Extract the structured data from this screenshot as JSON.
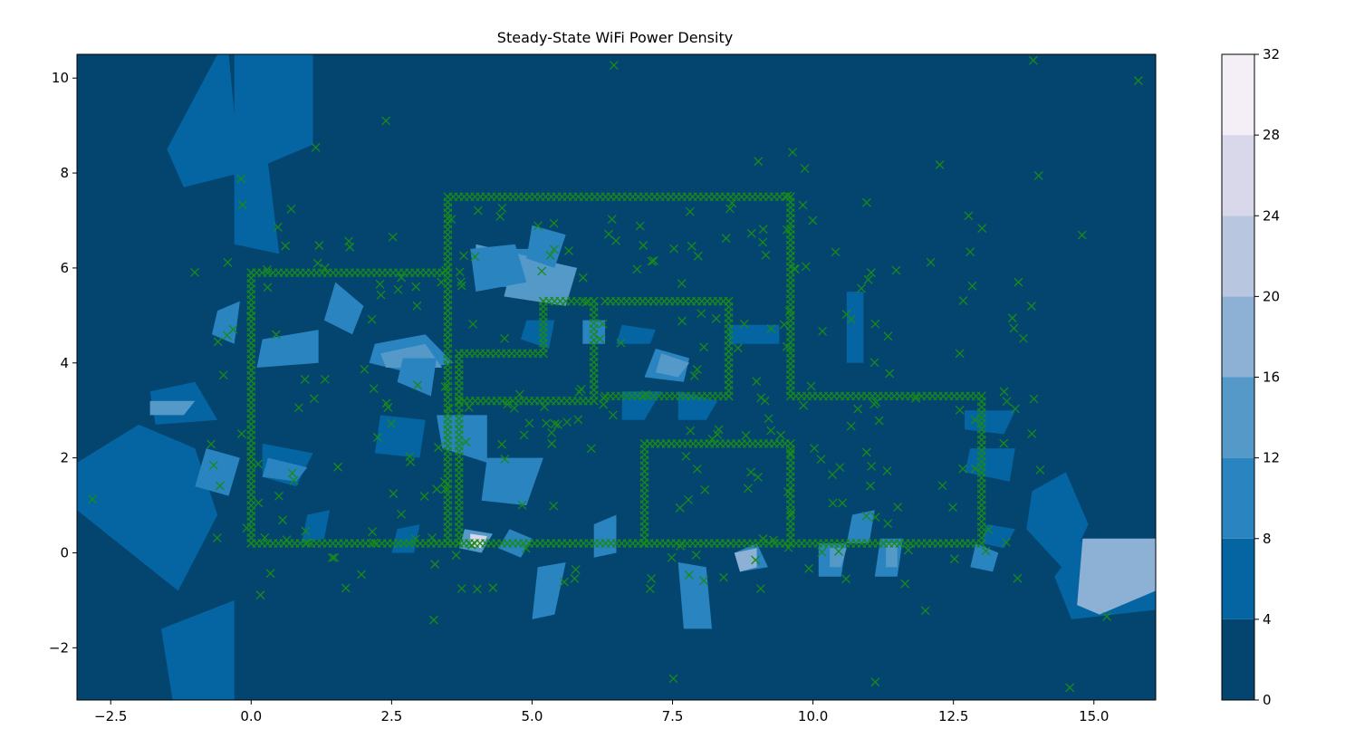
{
  "chart_data": {
    "type": "heatmap",
    "title": "Steady-State WiFi Power Density",
    "xlabel": "",
    "ylabel": "",
    "xlim": [
      -3.1,
      16.1
    ],
    "ylim": [
      -3.1,
      10.5
    ],
    "x_ticks": [
      "−2.5",
      "0.0",
      "2.5",
      "5.0",
      "7.5",
      "10.0",
      "12.5",
      "15.0"
    ],
    "x_tick_values": [
      -2.5,
      0.0,
      2.5,
      5.0,
      7.5,
      10.0,
      12.5,
      15.0
    ],
    "y_ticks": [
      "−2",
      "0",
      "2",
      "4",
      "6",
      "8",
      "10"
    ],
    "y_tick_values": [
      -2,
      0,
      2,
      4,
      6,
      8,
      10
    ],
    "grid": false,
    "colorbar": {
      "range": [
        0,
        32
      ],
      "ticks": [
        "0",
        "4",
        "8",
        "12",
        "16",
        "20",
        "24",
        "28",
        "32"
      ],
      "tick_values": [
        0,
        4,
        8,
        12,
        16,
        20,
        24,
        28,
        32
      ],
      "levels": [
        0,
        4,
        8,
        12,
        16,
        20,
        24,
        28,
        32
      ],
      "colors": [
        "#03456f",
        "#0565a3",
        "#2a84c0",
        "#5599c8",
        "#8db0d5",
        "#b9c6e0",
        "#d9d8ea",
        "#f4eef6"
      ]
    },
    "marker": {
      "symbol": "x",
      "color": "#1a8a1a"
    },
    "walls": [
      [
        [
          0,
          0.2
        ],
        [
          0,
          5.9
        ],
        [
          3.5,
          5.9
        ],
        [
          3.5,
          7.5
        ],
        [
          9.6,
          7.5
        ],
        [
          9.6,
          3.3
        ],
        [
          13,
          3.3
        ],
        [
          13,
          0.2
        ],
        [
          0,
          0.2
        ]
      ],
      [
        [
          3.5,
          0.2
        ],
        [
          3.5,
          5.9
        ]
      ],
      [
        [
          3.7,
          4.2
        ],
        [
          5.2,
          4.2
        ],
        [
          5.2,
          5.3
        ],
        [
          6.1,
          5.3
        ],
        [
          6.1,
          3.2
        ],
        [
          3.7,
          3.2
        ]
      ],
      [
        [
          6.3,
          5.3
        ],
        [
          8.5,
          5.3
        ],
        [
          8.5,
          3.3
        ],
        [
          6.3,
          3.3
        ]
      ],
      [
        [
          7,
          0.2
        ],
        [
          7,
          2.3
        ],
        [
          9.6,
          2.3
        ],
        [
          9.6,
          0.2
        ]
      ],
      [
        [
          3.7,
          0.2
        ],
        [
          3.7,
          4.2
        ]
      ]
    ],
    "patches": [
      {
        "level": 1,
        "points": [
          [
            -0.3,
            6.5
          ],
          [
            -0.3,
            10.5
          ],
          [
            1.1,
            10.5
          ],
          [
            1.1,
            8.6
          ],
          [
            0.3,
            8.2
          ],
          [
            0.5,
            6.3
          ]
        ]
      },
      {
        "level": 1,
        "points": [
          [
            -1.5,
            8.5
          ],
          [
            -0.6,
            10.5
          ],
          [
            -0.4,
            10.5
          ],
          [
            -0.2,
            8.0
          ],
          [
            -1.2,
            7.7
          ]
        ]
      },
      {
        "level": 1,
        "points": [
          [
            -3.1,
            0.9
          ],
          [
            -3.1,
            1.9
          ],
          [
            -2.0,
            2.7
          ],
          [
            -1.0,
            2.2
          ],
          [
            -0.6,
            0.8
          ],
          [
            -1.3,
            -0.8
          ]
        ]
      },
      {
        "level": 1,
        "points": [
          [
            -1.6,
            -1.6
          ],
          [
            -0.3,
            -1.0
          ],
          [
            -0.3,
            -3.1
          ],
          [
            -1.4,
            -3.1
          ]
        ]
      },
      {
        "level": 1,
        "points": [
          [
            14.3,
            -0.5
          ],
          [
            14.8,
            0.3
          ],
          [
            16.1,
            0.3
          ],
          [
            16.1,
            -1.2
          ],
          [
            14.6,
            -1.4
          ]
        ]
      },
      {
        "level": 4,
        "points": [
          [
            14.8,
            0.3
          ],
          [
            16.1,
            0.3
          ],
          [
            16.1,
            -0.8
          ],
          [
            15.1,
            -1.3
          ],
          [
            14.7,
            -1.1
          ]
        ]
      },
      {
        "level": 1,
        "points": [
          [
            13.9,
            1.3
          ],
          [
            14.5,
            1.7
          ],
          [
            14.9,
            0.6
          ],
          [
            14.5,
            -0.4
          ],
          [
            13.8,
            0.5
          ]
        ]
      },
      {
        "level": 1,
        "points": [
          [
            10.6,
            5.5
          ],
          [
            10.9,
            5.5
          ],
          [
            10.9,
            4.0
          ],
          [
            10.6,
            4.0
          ]
        ]
      },
      {
        "level": 2,
        "points": [
          [
            4.4,
            6.4
          ],
          [
            5.0,
            6.4
          ],
          [
            5.0,
            5.6
          ],
          [
            4.4,
            5.6
          ]
        ]
      },
      {
        "level": 3,
        "points": [
          [
            4.0,
            6.5
          ],
          [
            5.1,
            6.2
          ],
          [
            4.9,
            5.5
          ],
          [
            4.0,
            5.8
          ]
        ]
      },
      {
        "level": 3,
        "points": [
          [
            4.7,
            6.3
          ],
          [
            5.8,
            6.0
          ],
          [
            5.6,
            5.2
          ],
          [
            4.5,
            5.4
          ]
        ]
      },
      {
        "level": 2,
        "points": [
          [
            2.2,
            4.4
          ],
          [
            3.1,
            4.6
          ],
          [
            3.6,
            4.0
          ],
          [
            2.8,
            3.8
          ],
          [
            2.1,
            4.0
          ]
        ]
      },
      {
        "level": 3,
        "points": [
          [
            2.3,
            4.2
          ],
          [
            3.1,
            4.4
          ],
          [
            3.4,
            3.9
          ],
          [
            2.4,
            3.9
          ]
        ]
      },
      {
        "level": 2,
        "points": [
          [
            3.3,
            2.9
          ],
          [
            4.2,
            2.9
          ],
          [
            4.2,
            1.9
          ],
          [
            3.4,
            2.2
          ]
        ]
      },
      {
        "level": 2,
        "points": [
          [
            4.2,
            2.0
          ],
          [
            5.2,
            2.0
          ],
          [
            4.9,
            1.0
          ],
          [
            4.1,
            1.1
          ]
        ]
      },
      {
        "level": 2,
        "points": [
          [
            0.2,
            4.5
          ],
          [
            1.2,
            4.7
          ],
          [
            1.2,
            4.0
          ],
          [
            0.1,
            3.9
          ]
        ]
      },
      {
        "level": 2,
        "points": [
          [
            1.5,
            5.7
          ],
          [
            2.0,
            5.2
          ],
          [
            1.8,
            4.6
          ],
          [
            1.3,
            4.9
          ]
        ]
      },
      {
        "level": 1,
        "points": [
          [
            -1.8,
            3.4
          ],
          [
            -1.0,
            3.6
          ],
          [
            -0.6,
            2.8
          ],
          [
            -1.7,
            2.7
          ]
        ]
      },
      {
        "level": 3,
        "points": [
          [
            -1.8,
            3.2
          ],
          [
            -1.0,
            3.2
          ],
          [
            -1.2,
            2.9
          ],
          [
            -1.8,
            2.9
          ]
        ]
      },
      {
        "level": 2,
        "points": [
          [
            -0.8,
            2.2
          ],
          [
            -0.2,
            2.0
          ],
          [
            -0.4,
            1.2
          ],
          [
            -1.0,
            1.4
          ]
        ]
      },
      {
        "level": 1,
        "points": [
          [
            0.2,
            2.3
          ],
          [
            1.1,
            2.1
          ],
          [
            0.8,
            1.4
          ],
          [
            0.2,
            1.6
          ]
        ]
      },
      {
        "level": 2,
        "points": [
          [
            0.3,
            2.0
          ],
          [
            1.0,
            1.8
          ],
          [
            0.8,
            1.5
          ],
          [
            0.2,
            1.6
          ]
        ]
      },
      {
        "level": 2,
        "points": [
          [
            2.7,
            4.1
          ],
          [
            3.3,
            4.1
          ],
          [
            3.2,
            3.3
          ],
          [
            2.6,
            3.6
          ]
        ]
      },
      {
        "level": 2,
        "points": [
          [
            3.9,
            6.4
          ],
          [
            4.7,
            6.5
          ],
          [
            4.9,
            5.7
          ],
          [
            4.0,
            5.5
          ]
        ]
      },
      {
        "level": 2,
        "points": [
          [
            5.0,
            6.9
          ],
          [
            5.6,
            6.7
          ],
          [
            5.4,
            6.0
          ],
          [
            4.9,
            6.2
          ]
        ]
      },
      {
        "level": 1,
        "points": [
          [
            2.3,
            2.9
          ],
          [
            3.1,
            2.8
          ],
          [
            3.0,
            2.0
          ],
          [
            2.2,
            2.1
          ]
        ]
      },
      {
        "level": 2,
        "points": [
          [
            7.2,
            4.3
          ],
          [
            7.8,
            4.1
          ],
          [
            7.7,
            3.6
          ],
          [
            7.0,
            3.7
          ]
        ]
      },
      {
        "level": 3,
        "points": [
          [
            7.3,
            4.2
          ],
          [
            7.8,
            4.0
          ],
          [
            7.6,
            3.7
          ],
          [
            7.2,
            3.8
          ]
        ]
      },
      {
        "level": 1,
        "points": [
          [
            6.6,
            3.4
          ],
          [
            7.3,
            3.4
          ],
          [
            7.0,
            2.8
          ],
          [
            6.6,
            2.8
          ]
        ]
      },
      {
        "level": 1,
        "points": [
          [
            7.6,
            3.4
          ],
          [
            8.3,
            3.2
          ],
          [
            8.1,
            2.8
          ],
          [
            7.6,
            2.8
          ]
        ]
      },
      {
        "level": 1,
        "points": [
          [
            12.8,
            2.2
          ],
          [
            13.6,
            2.2
          ],
          [
            13.5,
            1.5
          ],
          [
            12.7,
            1.7
          ]
        ]
      },
      {
        "level": 1,
        "points": [
          [
            12.7,
            3.0
          ],
          [
            13.6,
            3.0
          ],
          [
            13.4,
            2.5
          ],
          [
            12.7,
            2.6
          ]
        ]
      },
      {
        "level": 1,
        "points": [
          [
            13.1,
            0.6
          ],
          [
            13.6,
            0.5
          ],
          [
            13.4,
            0.1
          ],
          [
            13.0,
            0.2
          ]
        ]
      },
      {
        "level": 2,
        "points": [
          [
            12.9,
            0.2
          ],
          [
            13.3,
            0.0
          ],
          [
            13.2,
            -0.4
          ],
          [
            12.8,
            -0.3
          ]
        ]
      },
      {
        "level": 1,
        "points": [
          [
            6.6,
            4.8
          ],
          [
            7.2,
            4.7
          ],
          [
            7.1,
            4.4
          ],
          [
            6.5,
            4.4
          ]
        ]
      },
      {
        "level": 1,
        "points": [
          [
            8.5,
            4.8
          ],
          [
            9.4,
            4.8
          ],
          [
            9.4,
            4.4
          ],
          [
            8.5,
            4.4
          ]
        ]
      },
      {
        "level": 1,
        "points": [
          [
            4.9,
            4.9
          ],
          [
            5.4,
            4.9
          ],
          [
            5.3,
            4.3
          ],
          [
            4.8,
            4.5
          ]
        ]
      },
      {
        "level": 2,
        "points": [
          [
            5.9,
            4.9
          ],
          [
            6.3,
            4.9
          ],
          [
            6.3,
            4.4
          ],
          [
            5.9,
            4.4
          ]
        ]
      },
      {
        "level": 2,
        "points": [
          [
            4.6,
            0.5
          ],
          [
            5.0,
            0.3
          ],
          [
            4.8,
            -0.1
          ],
          [
            4.4,
            0.1
          ]
        ]
      },
      {
        "level": 3,
        "points": [
          [
            3.8,
            0.5
          ],
          [
            4.3,
            0.4
          ],
          [
            4.1,
            0.0
          ],
          [
            3.7,
            0.1
          ]
        ]
      },
      {
        "level": 6,
        "points": [
          [
            3.9,
            0.4
          ],
          [
            4.2,
            0.35
          ],
          [
            4.1,
            0.1
          ],
          [
            3.9,
            0.15
          ]
        ]
      },
      {
        "level": 2,
        "points": [
          [
            8.6,
            0.0
          ],
          [
            9.0,
            0.2
          ],
          [
            9.2,
            -0.3
          ],
          [
            8.7,
            -0.4
          ]
        ]
      },
      {
        "level": 4,
        "points": [
          [
            8.6,
            0.0
          ],
          [
            9.0,
            0.1
          ],
          [
            9.0,
            -0.3
          ],
          [
            8.7,
            -0.4
          ]
        ]
      },
      {
        "level": 2,
        "points": [
          [
            5.1,
            -0.3
          ],
          [
            5.6,
            -0.2
          ],
          [
            5.4,
            -1.3
          ],
          [
            5.0,
            -1.4
          ]
        ]
      },
      {
        "level": 2,
        "points": [
          [
            7.6,
            -0.2
          ],
          [
            8.1,
            -0.3
          ],
          [
            8.2,
            -1.6
          ],
          [
            7.7,
            -1.6
          ]
        ]
      },
      {
        "level": 2,
        "points": [
          [
            10.1,
            0.2
          ],
          [
            10.6,
            0.2
          ],
          [
            10.5,
            -0.5
          ],
          [
            10.1,
            -0.5
          ]
        ]
      },
      {
        "level": 3,
        "points": [
          [
            10.3,
            0.1
          ],
          [
            10.6,
            0.1
          ],
          [
            10.5,
            -0.3
          ],
          [
            10.3,
            -0.3
          ]
        ]
      },
      {
        "level": 2,
        "points": [
          [
            11.2,
            0.3
          ],
          [
            11.6,
            0.3
          ],
          [
            11.5,
            -0.5
          ],
          [
            11.1,
            -0.5
          ]
        ]
      },
      {
        "level": 3,
        "points": [
          [
            11.3,
            0.2
          ],
          [
            11.5,
            0.2
          ],
          [
            11.5,
            -0.3
          ],
          [
            11.3,
            -0.3
          ]
        ]
      },
      {
        "level": 1,
        "points": [
          [
            1.0,
            0.8
          ],
          [
            1.4,
            0.9
          ],
          [
            1.3,
            0.3
          ],
          [
            0.9,
            0.2
          ]
        ]
      },
      {
        "level": 1,
        "points": [
          [
            2.6,
            0.5
          ],
          [
            3.0,
            0.6
          ],
          [
            2.9,
            0.0
          ],
          [
            2.5,
            0.0
          ]
        ]
      },
      {
        "level": 2,
        "points": [
          [
            -0.6,
            5.1
          ],
          [
            -0.2,
            5.3
          ],
          [
            -0.3,
            4.4
          ],
          [
            -0.7,
            4.6
          ]
        ]
      },
      {
        "level": 2,
        "points": [
          [
            6.1,
            0.6
          ],
          [
            6.5,
            0.8
          ],
          [
            6.5,
            0.0
          ],
          [
            6.1,
            -0.1
          ]
        ]
      },
      {
        "level": 2,
        "points": [
          [
            10.7,
            0.8
          ],
          [
            11.1,
            0.9
          ],
          [
            11.0,
            0.2
          ],
          [
            10.6,
            0.2
          ]
        ]
      }
    ]
  }
}
